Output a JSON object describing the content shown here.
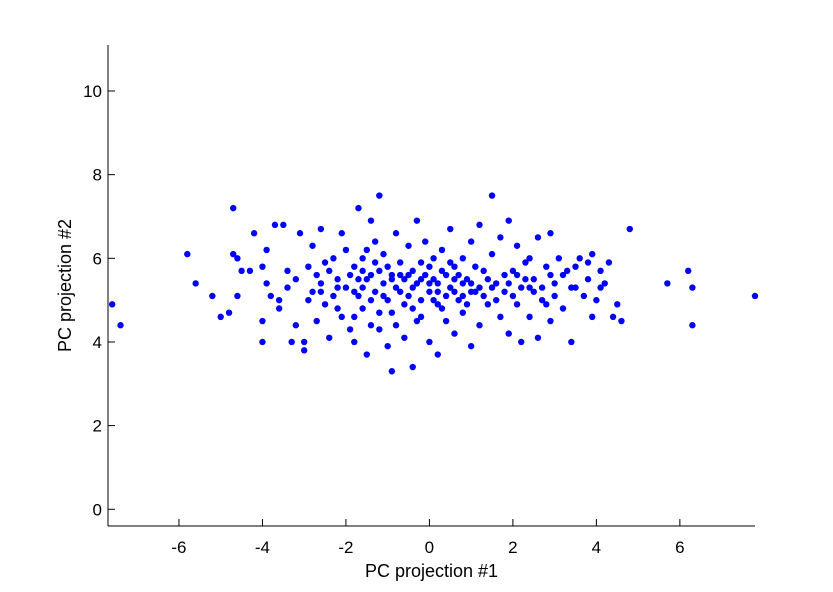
{
  "chart_data": {
    "type": "scatter",
    "title": "",
    "xlabel": "PC projection #1",
    "ylabel": "PC projection #2",
    "xlim": [
      -7.7,
      7.8
    ],
    "ylim": [
      -0.4,
      11.1
    ],
    "xticks": [
      -6,
      -4,
      -2,
      0,
      2,
      4,
      6
    ],
    "yticks": [
      0,
      2,
      4,
      6,
      8,
      10
    ],
    "grid": false,
    "marker_color": "#0000ff",
    "points": [
      [
        -7.6,
        4.9
      ],
      [
        -7.4,
        4.4
      ],
      [
        -5.8,
        6.1
      ],
      [
        -5.6,
        5.4
      ],
      [
        -5.2,
        5.1
      ],
      [
        -5.0,
        4.6
      ],
      [
        -4.8,
        4.7
      ],
      [
        -4.7,
        7.2
      ],
      [
        -4.6,
        6.0
      ],
      [
        -4.5,
        5.7
      ],
      [
        -4.7,
        6.1
      ],
      [
        -4.6,
        5.1
      ],
      [
        -4.3,
        5.7
      ],
      [
        -4.2,
        6.6
      ],
      [
        -4.0,
        5.8
      ],
      [
        -4.0,
        4.0
      ],
      [
        -4.0,
        4.5
      ],
      [
        -3.9,
        6.2
      ],
      [
        -3.8,
        5.1
      ],
      [
        -3.7,
        6.8
      ],
      [
        -3.6,
        4.8
      ],
      [
        -3.5,
        6.8
      ],
      [
        -3.4,
        5.7
      ],
      [
        -3.4,
        5.3
      ],
      [
        -3.3,
        4.0
      ],
      [
        -3.2,
        5.5
      ],
      [
        -3.1,
        6.6
      ],
      [
        -3.0,
        4.0
      ],
      [
        -3.0,
        3.8
      ],
      [
        -2.9,
        5.8
      ],
      [
        -2.8,
        5.2
      ],
      [
        -2.8,
        6.3
      ],
      [
        -2.7,
        4.5
      ],
      [
        -2.6,
        6.7
      ],
      [
        -2.6,
        5.4
      ],
      [
        -2.5,
        4.9
      ],
      [
        -2.4,
        5.7
      ],
      [
        -2.4,
        4.1
      ],
      [
        -2.3,
        6.0
      ],
      [
        -2.2,
        5.5
      ],
      [
        -2.2,
        4.8
      ],
      [
        -2.1,
        6.6
      ],
      [
        -2.0,
        5.3
      ],
      [
        -2.0,
        6.2
      ],
      [
        -1.9,
        4.3
      ],
      [
        -1.8,
        5.8
      ],
      [
        -1.8,
        4.0
      ],
      [
        -1.7,
        7.2
      ],
      [
        -1.7,
        5.1
      ],
      [
        -1.6,
        6.0
      ],
      [
        -1.6,
        4.8
      ],
      [
        -1.5,
        5.5
      ],
      [
        -1.5,
        3.7
      ],
      [
        -1.4,
        6.9
      ],
      [
        -1.4,
        4.4
      ],
      [
        -1.3,
        5.2
      ],
      [
        -1.3,
        6.4
      ],
      [
        -1.2,
        7.5
      ],
      [
        -1.2,
        5.7
      ],
      [
        -1.2,
        4.7
      ],
      [
        -1.1,
        6.1
      ],
      [
        -1.0,
        5.0
      ],
      [
        -1.0,
        3.9
      ],
      [
        -0.9,
        3.3
      ],
      [
        -0.9,
        5.5
      ],
      [
        -0.8,
        6.6
      ],
      [
        -0.8,
        4.4
      ],
      [
        -0.7,
        5.9
      ],
      [
        -0.7,
        5.2
      ],
      [
        -0.6,
        4.1
      ],
      [
        -0.5,
        6.3
      ],
      [
        -0.5,
        5.6
      ],
      [
        -0.4,
        3.4
      ],
      [
        -0.4,
        4.8
      ],
      [
        -0.3,
        6.9
      ],
      [
        -0.3,
        5.4
      ],
      [
        -0.2,
        5.9
      ],
      [
        -0.2,
        4.6
      ],
      [
        -0.1,
        6.4
      ],
      [
        0.0,
        5.2
      ],
      [
        0.0,
        4.0
      ],
      [
        0.1,
        6.0
      ],
      [
        0.1,
        5.5
      ],
      [
        0.2,
        3.7
      ],
      [
        0.2,
        4.9
      ],
      [
        0.3,
        6.2
      ],
      [
        0.3,
        5.7
      ],
      [
        0.4,
        4.5
      ],
      [
        0.5,
        5.3
      ],
      [
        0.5,
        6.7
      ],
      [
        0.6,
        4.2
      ],
      [
        0.6,
        5.8
      ],
      [
        0.7,
        5.0
      ],
      [
        0.8,
        6.0
      ],
      [
        0.8,
        4.7
      ],
      [
        0.9,
        5.5
      ],
      [
        1.0,
        6.4
      ],
      [
        1.0,
        3.9
      ],
      [
        1.1,
        5.2
      ],
      [
        1.2,
        6.8
      ],
      [
        1.2,
        4.4
      ],
      [
        1.3,
        5.7
      ],
      [
        1.4,
        4.9
      ],
      [
        1.5,
        7.5
      ],
      [
        1.5,
        6.1
      ],
      [
        1.6,
        5.4
      ],
      [
        1.7,
        4.6
      ],
      [
        1.7,
        6.5
      ],
      [
        1.8,
        5.2
      ],
      [
        1.9,
        6.9
      ],
      [
        1.9,
        4.2
      ],
      [
        2.0,
        5.7
      ],
      [
        2.1,
        6.3
      ],
      [
        2.1,
        4.9
      ],
      [
        2.2,
        4.0
      ],
      [
        2.3,
        5.5
      ],
      [
        2.4,
        6.0
      ],
      [
        2.4,
        4.6
      ],
      [
        2.5,
        5.2
      ],
      [
        2.6,
        6.5
      ],
      [
        2.6,
        4.1
      ],
      [
        2.7,
        5.0
      ],
      [
        2.8,
        5.8
      ],
      [
        2.9,
        6.6
      ],
      [
        2.9,
        4.5
      ],
      [
        3.0,
        5.4
      ],
      [
        3.1,
        6.0
      ],
      [
        3.2,
        4.8
      ],
      [
        3.3,
        5.7
      ],
      [
        3.4,
        4.0
      ],
      [
        3.5,
        5.3
      ],
      [
        3.6,
        6.0
      ],
      [
        3.8,
        5.5
      ],
      [
        3.9,
        6.1
      ],
      [
        3.9,
        4.6
      ],
      [
        4.0,
        5.0
      ],
      [
        4.1,
        5.7
      ],
      [
        4.2,
        5.4
      ],
      [
        4.3,
        5.9
      ],
      [
        4.4,
        4.6
      ],
      [
        4.5,
        4.9
      ],
      [
        4.6,
        4.5
      ],
      [
        4.8,
        6.7
      ],
      [
        5.7,
        5.4
      ],
      [
        6.2,
        5.7
      ],
      [
        6.3,
        5.3
      ],
      [
        6.3,
        4.4
      ],
      [
        7.8,
        5.1
      ],
      [
        -3.9,
        5.4
      ],
      [
        -3.6,
        5.0
      ],
      [
        -3.2,
        4.4
      ],
      [
        -2.9,
        5.0
      ],
      [
        -2.7,
        5.6
      ],
      [
        -2.5,
        5.9
      ],
      [
        -2.3,
        5.1
      ],
      [
        -2.1,
        4.6
      ],
      [
        -1.9,
        5.6
      ],
      [
        -1.8,
        4.6
      ],
      [
        -1.7,
        5.5
      ],
      [
        -1.6,
        5.3
      ],
      [
        -1.5,
        6.2
      ],
      [
        -1.4,
        5.0
      ],
      [
        -1.3,
        5.9
      ],
      [
        -1.2,
        4.3
      ],
      [
        -1.1,
        5.4
      ],
      [
        -1.0,
        5.8
      ],
      [
        -0.9,
        4.7
      ],
      [
        -0.8,
        5.3
      ],
      [
        -0.7,
        5.6
      ],
      [
        -0.6,
        4.9
      ],
      [
        -0.5,
        5.1
      ],
      [
        -0.4,
        5.7
      ],
      [
        -0.3,
        4.5
      ],
      [
        -0.2,
        5.0
      ],
      [
        -0.1,
        5.6
      ],
      [
        0.0,
        5.8
      ],
      [
        0.1,
        5.0
      ],
      [
        0.2,
        5.4
      ],
      [
        0.3,
        4.8
      ],
      [
        0.4,
        5.6
      ],
      [
        0.5,
        5.9
      ],
      [
        0.6,
        5.2
      ],
      [
        0.7,
        5.6
      ],
      [
        0.8,
        5.1
      ],
      [
        0.9,
        4.9
      ],
      [
        1.0,
        5.4
      ],
      [
        1.1,
        5.8
      ],
      [
        1.3,
        5.1
      ],
      [
        1.4,
        5.5
      ],
      [
        1.6,
        5.0
      ],
      [
        1.8,
        5.6
      ],
      [
        2.0,
        5.1
      ],
      [
        2.2,
        5.3
      ],
      [
        2.3,
        5.9
      ],
      [
        2.5,
        5.5
      ],
      [
        2.7,
        5.3
      ],
      [
        2.8,
        4.9
      ],
      [
        3.0,
        5.1
      ],
      [
        3.2,
        5.6
      ],
      [
        3.4,
        5.3
      ],
      [
        3.7,
        5.1
      ],
      [
        4.1,
        5.3
      ],
      [
        -2.6,
        5.2
      ],
      [
        -2.2,
        5.3
      ],
      [
        -1.8,
        5.2
      ],
      [
        -1.6,
        5.7
      ],
      [
        -1.4,
        5.6
      ],
      [
        -1.1,
        5.1
      ],
      [
        -0.9,
        5.6
      ],
      [
        -0.6,
        5.5
      ],
      [
        -0.4,
        5.3
      ],
      [
        -0.2,
        5.5
      ],
      [
        0.0,
        5.4
      ],
      [
        0.2,
        5.2
      ],
      [
        0.4,
        5.1
      ],
      [
        0.6,
        5.5
      ],
      [
        0.8,
        5.4
      ],
      [
        1.0,
        5.2
      ],
      [
        1.2,
        5.3
      ],
      [
        1.5,
        5.3
      ],
      [
        1.9,
        5.4
      ],
      [
        2.1,
        5.6
      ],
      [
        2.4,
        5.3
      ],
      [
        2.9,
        5.6
      ],
      [
        3.5,
        5.8
      ],
      [
        3.8,
        5.9
      ]
    ]
  }
}
